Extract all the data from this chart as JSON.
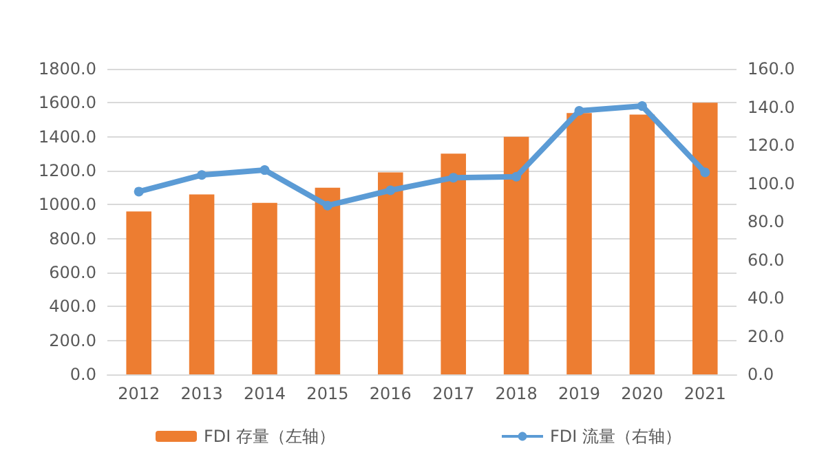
{
  "chart_data": {
    "type": "bar",
    "categories": [
      "2012",
      "2013",
      "2014",
      "2015",
      "2016",
      "2017",
      "2018",
      "2019",
      "2020",
      "2021"
    ],
    "series": [
      {
        "name": "FDI 存量（左轴）",
        "color": "#ed7d31",
        "values": [
          960,
          1060,
          1010,
          1100,
          1190,
          1300,
          1400,
          1540,
          1530,
          1600
        ]
      },
      {
        "name": "FDI 流量（右轴）",
        "type": "line",
        "axis": "y2",
        "color": "#5b9bd5",
        "marker": "circle",
        "values": [
          95.7,
          104.4,
          107.0,
          88.4,
          96.4,
          103.0,
          103.5,
          138.0,
          140.5,
          105.8
        ]
      }
    ],
    "ylim": [
      0,
      1800
    ],
    "yticks": [
      {
        "value": 0,
        "label": "0.0"
      },
      {
        "value": 200,
        "label": "200.0"
      },
      {
        "value": 400,
        "label": "400.0"
      },
      {
        "value": 600,
        "label": "600.0"
      },
      {
        "value": 800,
        "label": "800.0"
      },
      {
        "value": 1000,
        "label": "1000.0"
      },
      {
        "value": 1200,
        "label": "1200.0"
      },
      {
        "value": 1400,
        "label": "1400.0"
      },
      {
        "value": 1600,
        "label": "1600.0"
      },
      {
        "value": 1800,
        "label": "1800.0"
      }
    ],
    "y2lim": [
      0,
      160
    ],
    "y2ticks": [
      {
        "value": 0,
        "label": "0.0"
      },
      {
        "value": 20,
        "label": "20.0"
      },
      {
        "value": 40,
        "label": "40.0"
      },
      {
        "value": 60,
        "label": "60.0"
      },
      {
        "value": 80,
        "label": "80.0"
      },
      {
        "value": 100,
        "label": "100.0"
      },
      {
        "value": 120,
        "label": "120.0"
      },
      {
        "value": 140,
        "label": "140.0"
      },
      {
        "value": 160,
        "label": "160.0"
      }
    ],
    "grid": "y",
    "legend": "bottom"
  }
}
